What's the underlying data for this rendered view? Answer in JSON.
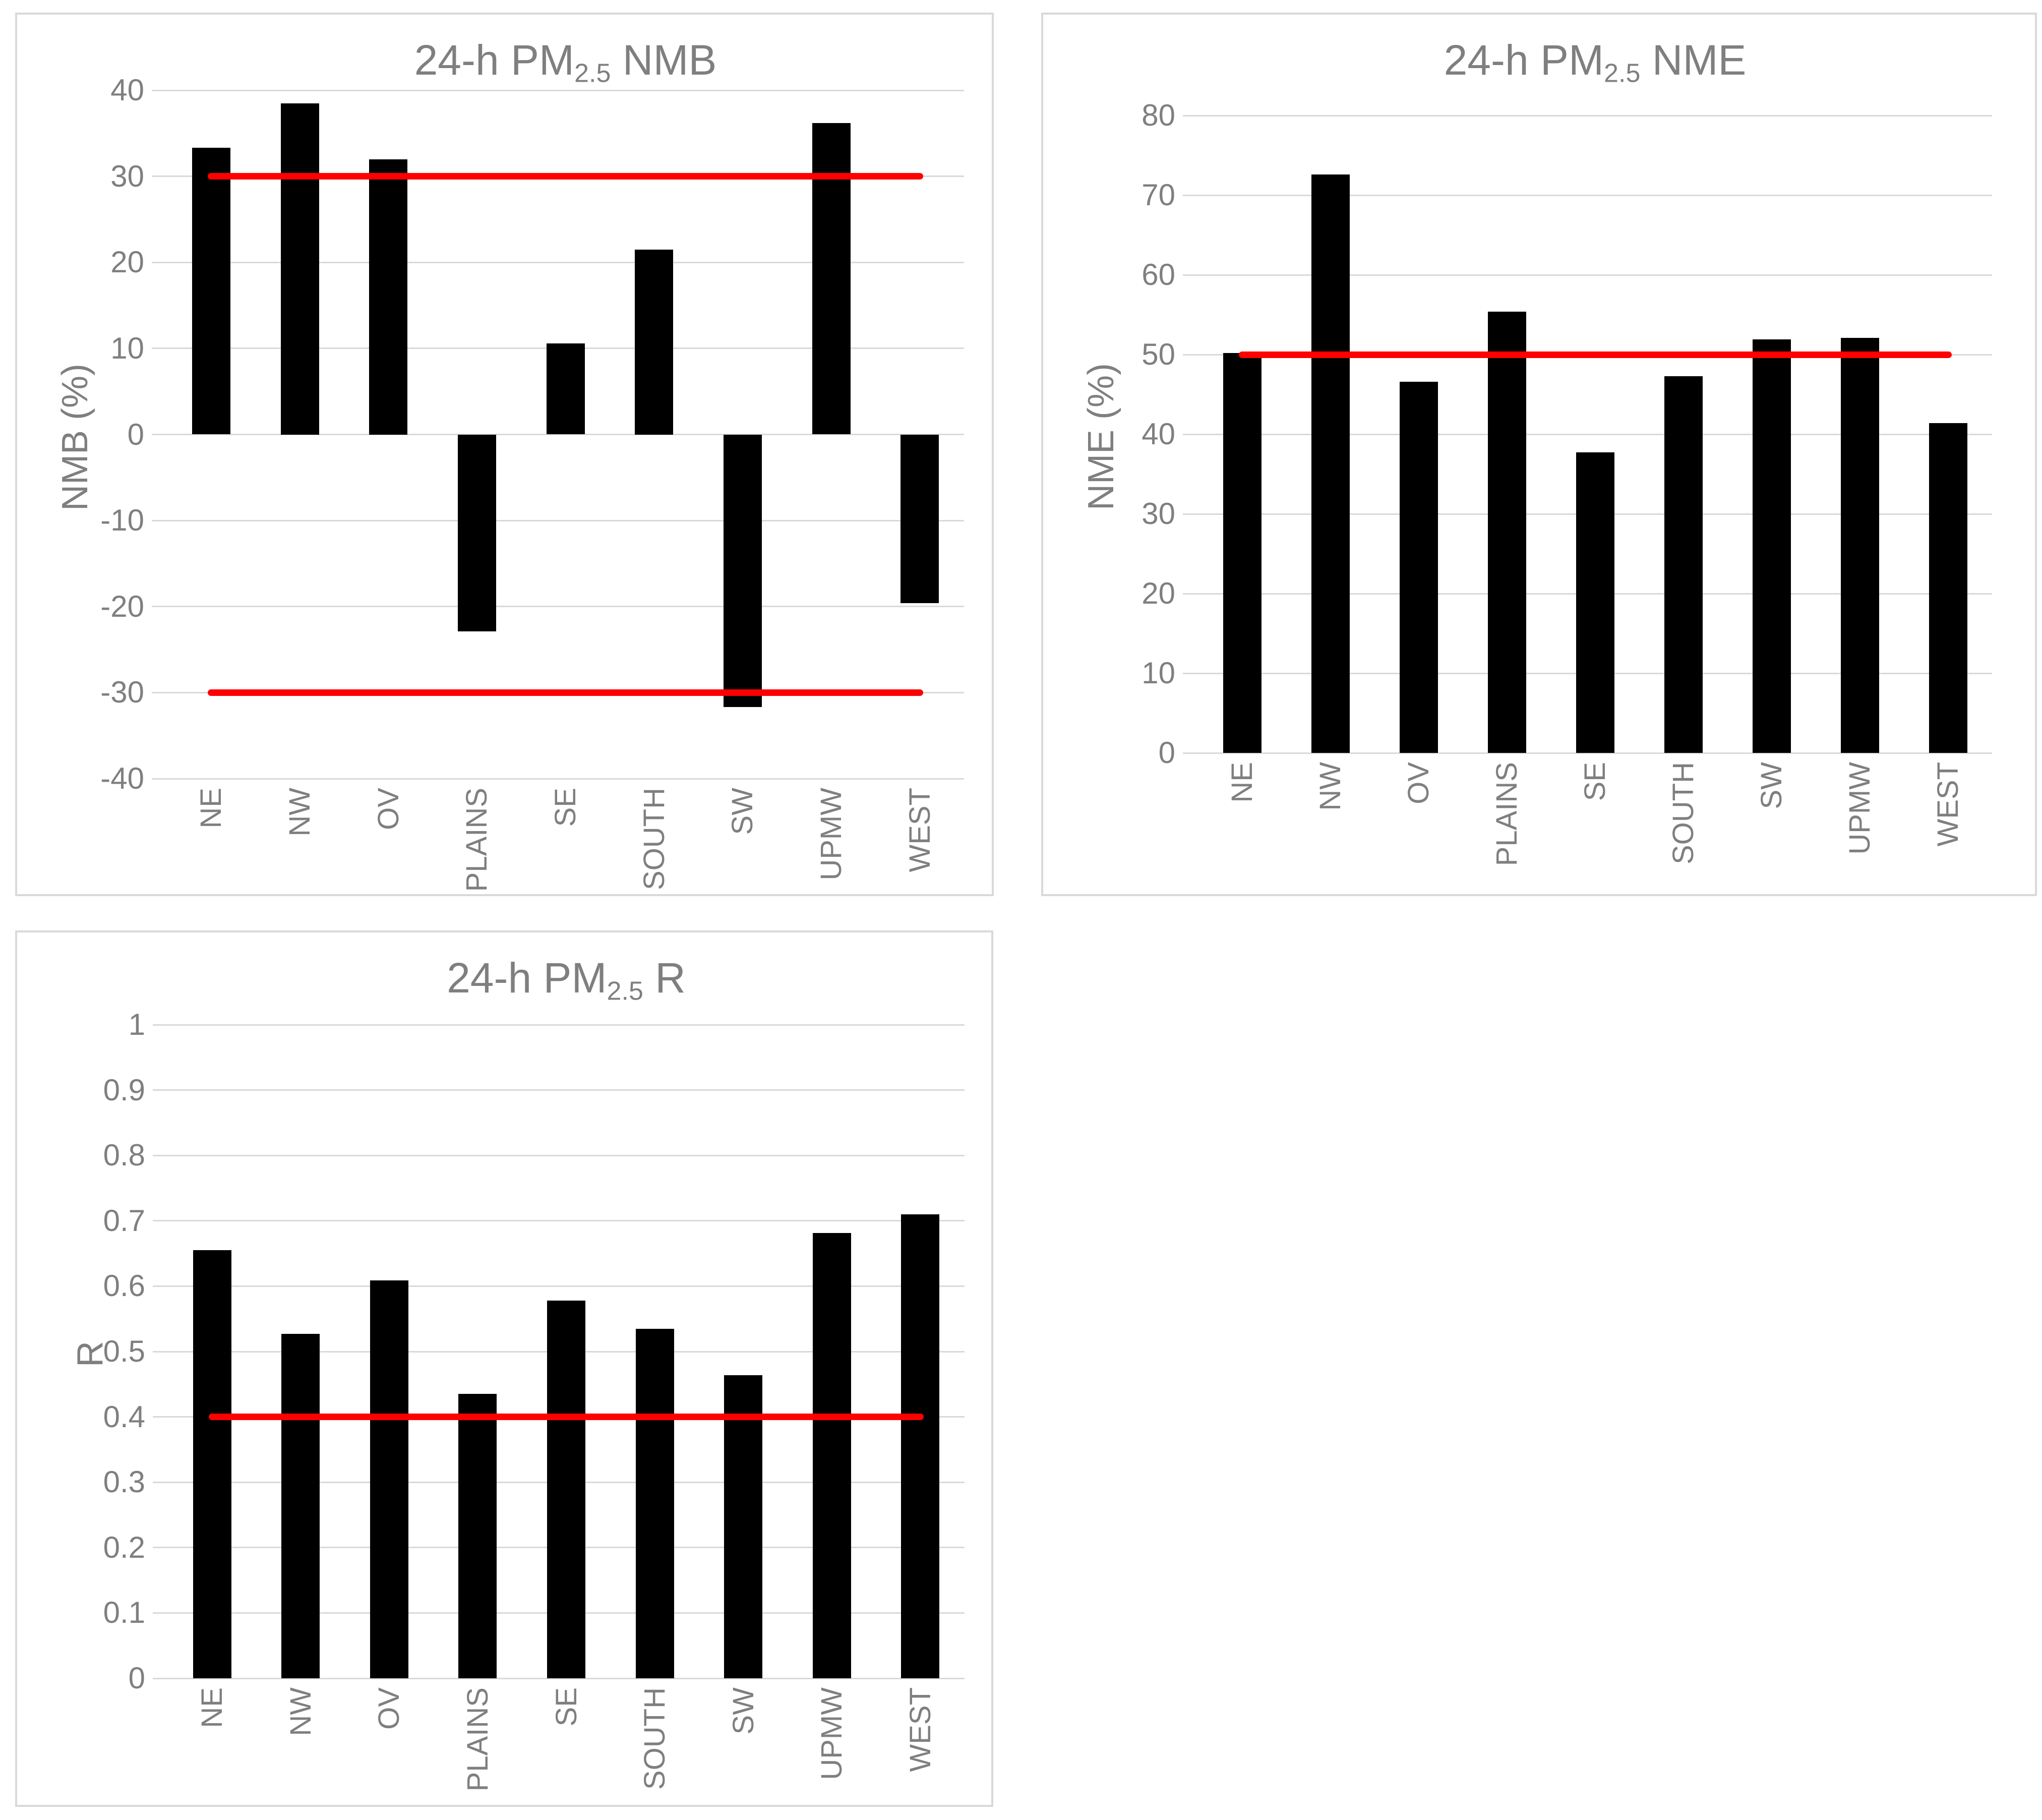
{
  "figure_background": "#ffffff",
  "colors": {
    "bar": "#000000",
    "gridline": "#d9d9d9",
    "panel_border": "#d9d9d9",
    "text": "#7f7f7f",
    "reference_line": "#ff0000"
  },
  "chart_data": [
    {
      "type": "bar",
      "title": {
        "pre": "24-h PM",
        "sub": "2.5",
        "post": " NMB"
      },
      "ylabel": "NMB (%)",
      "categories": [
        "NE",
        "NW",
        "OV",
        "PLAINS",
        "SE",
        "SOUTH",
        "SW",
        "UPMW",
        "WEST"
      ],
      "values": [
        33.3,
        38.5,
        32.0,
        -22.9,
        10.6,
        21.5,
        -31.7,
        36.2,
        -19.6
      ],
      "ylim": [
        -40,
        40
      ],
      "yticks": [
        40,
        30,
        20,
        10,
        0,
        -10,
        -20,
        -30,
        -40
      ],
      "reference_lines": [
        30,
        -30
      ],
      "grid": "on",
      "legend": "none"
    },
    {
      "type": "bar",
      "title": {
        "pre": "24-h PM",
        "sub": "2.5",
        "post": " NME"
      },
      "ylabel": "NME (%)",
      "categories": [
        "NE",
        "NW",
        "OV",
        "PLAINS",
        "SE",
        "SOUTH",
        "SW",
        "UPMW",
        "WEST"
      ],
      "values": [
        50.2,
        72.6,
        46.6,
        55.4,
        37.7,
        47.3,
        51.9,
        52.1,
        41.4
      ],
      "ylim": [
        0,
        80
      ],
      "yticks": [
        80,
        70,
        60,
        50,
        40,
        30,
        20,
        10,
        0
      ],
      "reference_lines": [
        50
      ],
      "grid": "on",
      "legend": "none"
    },
    {
      "type": "bar",
      "title": {
        "pre": "24-h PM",
        "sub": "2.5",
        "post": " R"
      },
      "ylabel": "R",
      "categories": [
        "NE",
        "NW",
        "OV",
        "PLAINS",
        "SE",
        "SOUTH",
        "SW",
        "UPMW",
        "WEST"
      ],
      "values": [
        0.655,
        0.527,
        0.609,
        0.435,
        0.578,
        0.535,
        0.464,
        0.681,
        0.71
      ],
      "ylim": [
        0,
        1
      ],
      "yticks": [
        1,
        0.9,
        0.8,
        0.7,
        0.6,
        0.5,
        0.4,
        0.3,
        0.2,
        0.1,
        0
      ],
      "reference_lines": [
        0.4
      ],
      "grid": "on",
      "legend": "none"
    }
  ]
}
